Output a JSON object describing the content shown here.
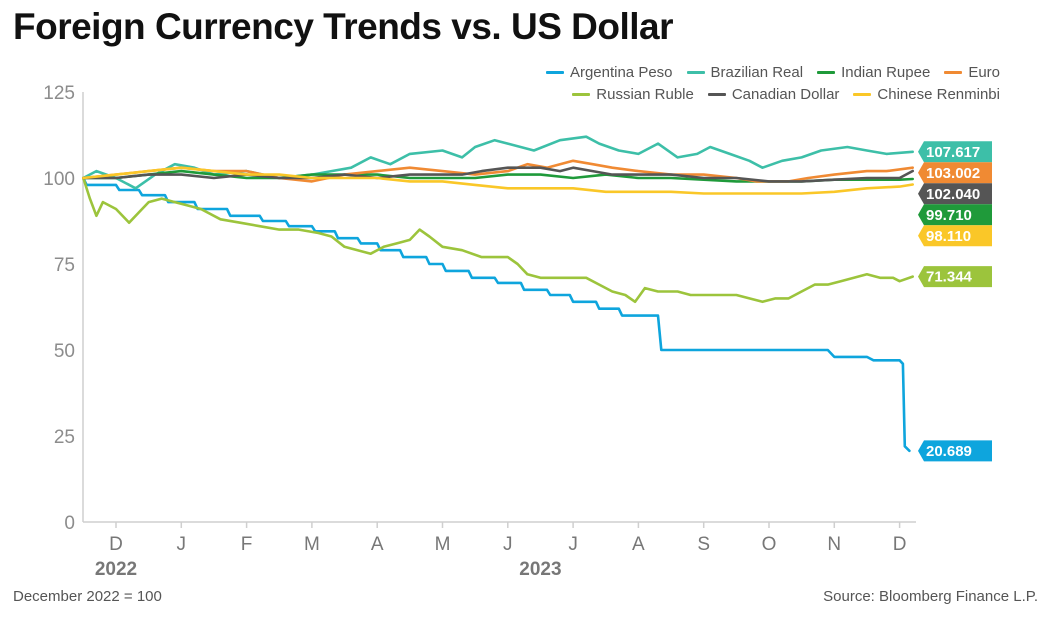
{
  "header": {
    "title": "Foreign Currency Trends vs. US Dollar"
  },
  "footer": {
    "note": "December 2022 = 100",
    "source": "Source: Bloomberg Finance L.P."
  },
  "chart_data": {
    "type": "line",
    "title": "Foreign Currency Trends vs. US Dollar",
    "xlabel": "",
    "ylabel": "",
    "ylim": [
      0,
      125
    ],
    "yticks": [
      0,
      25,
      50,
      75,
      100,
      125
    ],
    "x_months": [
      "D",
      "J",
      "F",
      "M",
      "A",
      "M",
      "J",
      "J",
      "A",
      "S",
      "O",
      "N",
      "D"
    ],
    "x_years": [
      {
        "label": "2022",
        "month_index": 0
      },
      {
        "label": "2023",
        "month_index": 6.5
      }
    ],
    "grid": false,
    "legend": "top-right",
    "series": [
      {
        "name": "Argentina Peso",
        "color": "#0ea5dd",
        "end_label": "20.689",
        "points": [
          [
            -0.5,
            100
          ],
          [
            -0.45,
            98
          ],
          [
            0,
            98
          ],
          [
            0.05,
            96.5
          ],
          [
            0.35,
            96.5
          ],
          [
            0.4,
            95
          ],
          [
            0.75,
            95
          ],
          [
            0.8,
            93
          ],
          [
            1.2,
            93
          ],
          [
            1.25,
            91
          ],
          [
            1.7,
            91
          ],
          [
            1.75,
            89
          ],
          [
            2.2,
            89
          ],
          [
            2.25,
            87.5
          ],
          [
            2.6,
            87.5
          ],
          [
            2.65,
            86
          ],
          [
            3,
            86
          ],
          [
            3.05,
            84.5
          ],
          [
            3.35,
            84.5
          ],
          [
            3.4,
            82.5
          ],
          [
            3.7,
            82.5
          ],
          [
            3.75,
            81
          ],
          [
            4,
            81
          ],
          [
            4.05,
            79
          ],
          [
            4.35,
            79
          ],
          [
            4.4,
            77
          ],
          [
            4.75,
            77
          ],
          [
            4.8,
            75
          ],
          [
            5,
            75
          ],
          [
            5.05,
            73
          ],
          [
            5.4,
            73
          ],
          [
            5.45,
            71
          ],
          [
            5.8,
            71
          ],
          [
            5.85,
            69.5
          ],
          [
            6.2,
            69.5
          ],
          [
            6.25,
            67.5
          ],
          [
            6.6,
            67.5
          ],
          [
            6.65,
            66
          ],
          [
            6.95,
            66
          ],
          [
            7,
            64
          ],
          [
            7.35,
            64
          ],
          [
            7.4,
            62
          ],
          [
            7.7,
            62
          ],
          [
            7.75,
            60
          ],
          [
            8.3,
            60
          ],
          [
            8.35,
            50
          ],
          [
            10.9,
            50
          ],
          [
            11,
            48
          ],
          [
            11.5,
            48
          ],
          [
            11.6,
            47
          ],
          [
            12,
            47
          ],
          [
            12.05,
            46
          ],
          [
            12.08,
            22
          ],
          [
            12.15,
            20.689
          ]
        ]
      },
      {
        "name": "Brazilian Real",
        "color": "#3dbfa8",
        "end_label": "107.617",
        "points": [
          [
            -0.5,
            100
          ],
          [
            -0.3,
            102
          ],
          [
            0,
            100
          ],
          [
            0.3,
            97
          ],
          [
            0.6,
            101
          ],
          [
            0.9,
            104
          ],
          [
            1.2,
            103
          ],
          [
            1.5,
            101
          ],
          [
            2,
            102
          ],
          [
            2.5,
            100
          ],
          [
            3,
            101
          ],
          [
            3.3,
            102
          ],
          [
            3.6,
            103
          ],
          [
            3.9,
            106
          ],
          [
            4.2,
            104
          ],
          [
            4.5,
            107
          ],
          [
            5,
            108
          ],
          [
            5.3,
            106
          ],
          [
            5.5,
            109
          ],
          [
            5.8,
            111
          ],
          [
            6,
            110
          ],
          [
            6.4,
            108
          ],
          [
            6.8,
            111
          ],
          [
            7.2,
            112
          ],
          [
            7.4,
            110
          ],
          [
            7.7,
            108
          ],
          [
            8,
            107
          ],
          [
            8.3,
            110
          ],
          [
            8.6,
            106
          ],
          [
            8.9,
            107
          ],
          [
            9.1,
            109
          ],
          [
            9.4,
            107
          ],
          [
            9.7,
            105
          ],
          [
            9.9,
            103
          ],
          [
            10.2,
            105
          ],
          [
            10.5,
            106
          ],
          [
            10.8,
            108
          ],
          [
            11.2,
            109
          ],
          [
            11.5,
            108
          ],
          [
            11.8,
            107
          ],
          [
            12.2,
            107.617
          ]
        ]
      },
      {
        "name": "Indian Rupee",
        "color": "#1f9a3a",
        "end_label": "99.710",
        "points": [
          [
            -0.5,
            100
          ],
          [
            0,
            100
          ],
          [
            0.5,
            101
          ],
          [
            1,
            102
          ],
          [
            1.5,
            101
          ],
          [
            2,
            100
          ],
          [
            2.5,
            100
          ],
          [
            3,
            101
          ],
          [
            3.5,
            101
          ],
          [
            4,
            101
          ],
          [
            4.5,
            100
          ],
          [
            5,
            100
          ],
          [
            5.5,
            100
          ],
          [
            6,
            101
          ],
          [
            6.5,
            101
          ],
          [
            7,
            100
          ],
          [
            7.5,
            101
          ],
          [
            8,
            100
          ],
          [
            8.5,
            100
          ],
          [
            9,
            99.5
          ],
          [
            9.5,
            99
          ],
          [
            10,
            99
          ],
          [
            10.5,
            99
          ],
          [
            11,
            99.5
          ],
          [
            11.5,
            99.5
          ],
          [
            12,
            99.5
          ],
          [
            12.2,
            99.71
          ]
        ]
      },
      {
        "name": "Euro",
        "color": "#f08a33",
        "end_label": "103.002",
        "points": [
          [
            -0.5,
            100
          ],
          [
            0,
            101
          ],
          [
            0.5,
            102
          ],
          [
            1,
            103
          ],
          [
            1.5,
            102
          ],
          [
            2,
            102
          ],
          [
            2.5,
            100
          ],
          [
            3,
            99
          ],
          [
            3.5,
            101
          ],
          [
            4,
            102
          ],
          [
            4.5,
            103
          ],
          [
            5,
            102
          ],
          [
            5.5,
            101
          ],
          [
            6,
            102
          ],
          [
            6.3,
            104
          ],
          [
            6.6,
            103
          ],
          [
            7,
            105
          ],
          [
            7.3,
            104
          ],
          [
            7.6,
            103
          ],
          [
            8,
            102
          ],
          [
            8.5,
            101
          ],
          [
            9,
            101
          ],
          [
            9.5,
            100
          ],
          [
            9.8,
            99
          ],
          [
            10,
            99
          ],
          [
            10.3,
            99
          ],
          [
            10.6,
            100
          ],
          [
            11,
            101
          ],
          [
            11.5,
            102
          ],
          [
            11.8,
            102
          ],
          [
            12.2,
            103.002
          ]
        ]
      },
      {
        "name": "Russian Ruble",
        "color": "#9cc43c",
        "end_label": "71.344",
        "points": [
          [
            -0.5,
            100
          ],
          [
            -0.4,
            94
          ],
          [
            -0.3,
            89
          ],
          [
            -0.2,
            93
          ],
          [
            0,
            91
          ],
          [
            0.2,
            87
          ],
          [
            0.35,
            90
          ],
          [
            0.5,
            93
          ],
          [
            0.7,
            94
          ],
          [
            0.9,
            93
          ],
          [
            1.1,
            92
          ],
          [
            1.3,
            91
          ],
          [
            1.6,
            88
          ],
          [
            1.9,
            87
          ],
          [
            2.2,
            86
          ],
          [
            2.5,
            85
          ],
          [
            2.8,
            85
          ],
          [
            3.1,
            84
          ],
          [
            3.3,
            83
          ],
          [
            3.5,
            80
          ],
          [
            3.7,
            79
          ],
          [
            3.9,
            78
          ],
          [
            4.1,
            80
          ],
          [
            4.3,
            81
          ],
          [
            4.5,
            82
          ],
          [
            4.65,
            85
          ],
          [
            4.8,
            83
          ],
          [
            5,
            80
          ],
          [
            5.3,
            79
          ],
          [
            5.6,
            77
          ],
          [
            5.8,
            77
          ],
          [
            6,
            77
          ],
          [
            6.15,
            75
          ],
          [
            6.3,
            72
          ],
          [
            6.5,
            71
          ],
          [
            6.8,
            71
          ],
          [
            7,
            71
          ],
          [
            7.2,
            71
          ],
          [
            7.4,
            69
          ],
          [
            7.6,
            67
          ],
          [
            7.8,
            66
          ],
          [
            7.95,
            64
          ],
          [
            8.1,
            68
          ],
          [
            8.3,
            67
          ],
          [
            8.6,
            67
          ],
          [
            8.8,
            66
          ],
          [
            9,
            66
          ],
          [
            9.3,
            66
          ],
          [
            9.5,
            66
          ],
          [
            9.7,
            65
          ],
          [
            9.9,
            64
          ],
          [
            10.1,
            65
          ],
          [
            10.3,
            65
          ],
          [
            10.5,
            67
          ],
          [
            10.7,
            69
          ],
          [
            10.9,
            69
          ],
          [
            11.1,
            70
          ],
          [
            11.3,
            71
          ],
          [
            11.5,
            72
          ],
          [
            11.7,
            71
          ],
          [
            11.9,
            71
          ],
          [
            12,
            70
          ],
          [
            12.2,
            71.344
          ]
        ]
      },
      {
        "name": "Canadian Dollar",
        "color": "#555555",
        "end_label": "102.040",
        "points": [
          [
            -0.5,
            100
          ],
          [
            0,
            100
          ],
          [
            0.5,
            101
          ],
          [
            1,
            101
          ],
          [
            1.5,
            100
          ],
          [
            2,
            101
          ],
          [
            2.5,
            100
          ],
          [
            3,
            100
          ],
          [
            3.5,
            101
          ],
          [
            4,
            100
          ],
          [
            4.5,
            101
          ],
          [
            5,
            101
          ],
          [
            5.3,
            101
          ],
          [
            5.6,
            102
          ],
          [
            6,
            103
          ],
          [
            6.5,
            103
          ],
          [
            6.8,
            102
          ],
          [
            7,
            103
          ],
          [
            7.3,
            102
          ],
          [
            7.6,
            101
          ],
          [
            8,
            101
          ],
          [
            8.5,
            101
          ],
          [
            9,
            100
          ],
          [
            9.5,
            100
          ],
          [
            10,
            99
          ],
          [
            10.5,
            99
          ],
          [
            11,
            99.5
          ],
          [
            11.5,
            100
          ],
          [
            12,
            100
          ],
          [
            12.2,
            102.04
          ]
        ]
      },
      {
        "name": "Chinese Renminbi",
        "color": "#fac728",
        "end_label": "98.110",
        "points": [
          [
            -0.5,
            100
          ],
          [
            0,
            101
          ],
          [
            0.5,
            102
          ],
          [
            1,
            103
          ],
          [
            1.5,
            102
          ],
          [
            2,
            101
          ],
          [
            2.5,
            101
          ],
          [
            3,
            100
          ],
          [
            3.5,
            100
          ],
          [
            4,
            100
          ],
          [
            4.5,
            99
          ],
          [
            5,
            99
          ],
          [
            5.5,
            98
          ],
          [
            6,
            97
          ],
          [
            6.5,
            97
          ],
          [
            7,
            97
          ],
          [
            7.5,
            96
          ],
          [
            8,
            96
          ],
          [
            8.5,
            96
          ],
          [
            9,
            95.5
          ],
          [
            9.5,
            95.5
          ],
          [
            10,
            95.5
          ],
          [
            10.5,
            95.5
          ],
          [
            11,
            96
          ],
          [
            11.5,
            97
          ],
          [
            12,
            97.5
          ],
          [
            12.2,
            98.11
          ]
        ]
      }
    ]
  }
}
